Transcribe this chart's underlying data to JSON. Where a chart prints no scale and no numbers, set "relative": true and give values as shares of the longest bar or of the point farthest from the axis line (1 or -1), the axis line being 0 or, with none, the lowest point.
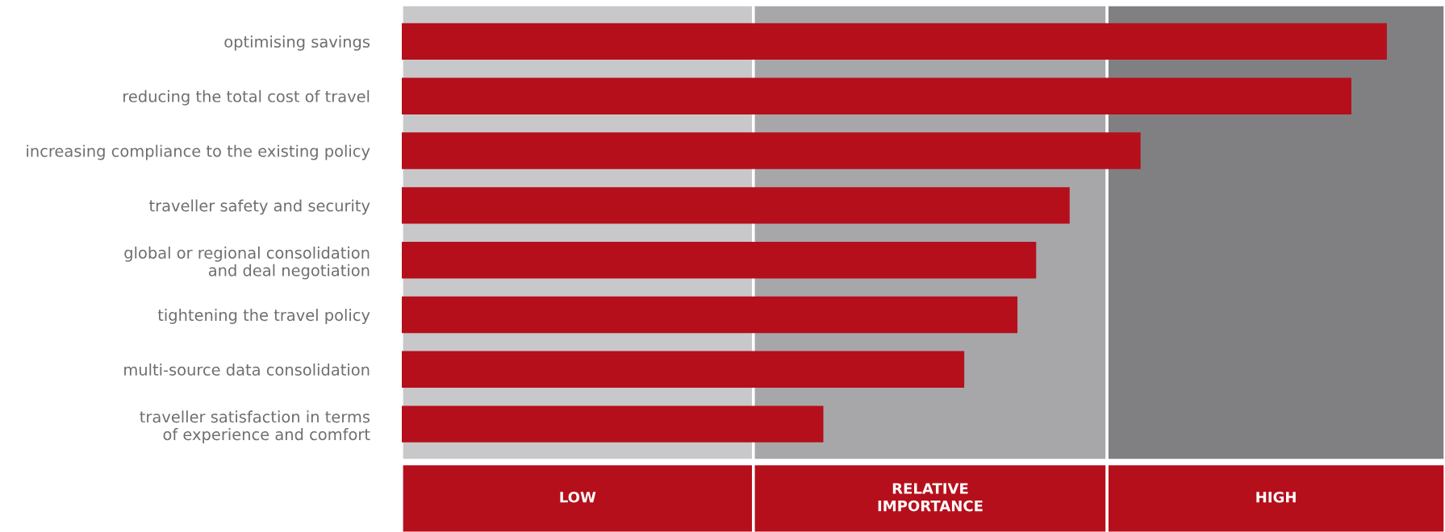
{
  "chart_data": {
    "type": "bar",
    "orientation": "horizontal",
    "relative": true,
    "categories": [
      "optimising savings",
      "reducing the total cost of travel",
      "increasing compliance to the existing policy",
      "traveller safety and security",
      "global or regional consolidation\nand deal negotiation",
      "tightening the travel policy",
      "multi-source data consolidation",
      "traveller satisfaction in terms\nof experience and comfort"
    ],
    "values": [
      1,
      0.964,
      0.75,
      0.678,
      0.644,
      0.625,
      0.571,
      0.428
    ],
    "color": "#b50f1b",
    "bands": [
      {
        "axis": "x",
        "from": 0,
        "to": 0.357,
        "label": "LOW",
        "color": "#c8c8ca"
      },
      {
        "axis": "x",
        "from": 0.357,
        "to": 0.716,
        "label": "RELATIVE\nIMPORTANCE",
        "color": "#a7a7aa"
      },
      {
        "axis": "x",
        "from": 0.716,
        "to": 1.059,
        "label": "HIGH",
        "color": "#808083"
      }
    ],
    "grid": false,
    "legend": false
  }
}
